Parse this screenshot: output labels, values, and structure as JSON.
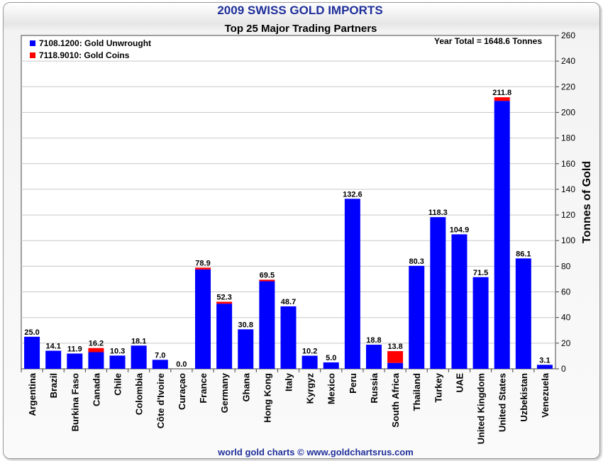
{
  "chart_data": {
    "type": "bar",
    "title": "2009 SWISS GOLD IMPORTS",
    "subtitle": "Top 25 Major Trading Partners",
    "annotation": "Year Total = 1648.6 Tonnes",
    "ylabel": "Tonnes of Gold",
    "xlabel": "",
    "ylim": [
      0,
      260
    ],
    "yticks": [
      0,
      20,
      40,
      60,
      80,
      100,
      120,
      140,
      160,
      180,
      200,
      220,
      240,
      260
    ],
    "y_axis_side": "right",
    "grid": true,
    "stacked": true,
    "legend_position": "top-left",
    "categories": [
      "Argentina",
      "Brazil",
      "Burkina Faso",
      "Canada",
      "Chile",
      "Colombia",
      "Côte d'Ivoire",
      "Curaçao",
      "France",
      "Germany",
      "Ghana",
      "Hong Kong",
      "Italy",
      "Kyrgyz",
      "Mexico",
      "Peru",
      "Russia",
      "South Africa",
      "Thailand",
      "Turkey",
      "UAE",
      "United Kingdom",
      "United States",
      "Uzbekistan",
      "Venezuela"
    ],
    "series": [
      {
        "name": "7108.1200: Gold Unwrought",
        "color": "#0000ff",
        "values": [
          25.0,
          14.1,
          11.9,
          13.0,
          10.3,
          18.1,
          7.0,
          0.0,
          77.5,
          50.8,
          30.8,
          68.3,
          48.7,
          10.2,
          5.0,
          132.6,
          18.8,
          4.6,
          80.3,
          118.3,
          104.9,
          71.5,
          209.0,
          86.1,
          3.1
        ]
      },
      {
        "name": "7118.9010: Gold Coins",
        "color": "#ff0000",
        "values": [
          0,
          0,
          0,
          3.2,
          0,
          0,
          0,
          0,
          1.4,
          1.5,
          0,
          1.2,
          0,
          0,
          0,
          0,
          0,
          9.2,
          0,
          0,
          0,
          0,
          2.8,
          0,
          0
        ]
      }
    ],
    "totals": [
      "25.0",
      "14.1",
      "11.9",
      "16.2",
      "10.3",
      "18.1",
      "7.0",
      "0.0",
      "78.9",
      "52.3",
      "30.8",
      "69.5",
      "48.7",
      "10.2",
      "5.0",
      "132.6",
      "18.8",
      "13.8",
      "80.3",
      "118.3",
      "104.9",
      "71.5",
      "211.8",
      "86.1",
      "3.1"
    ]
  },
  "footer": "world gold charts © www.goldchartsrus.com"
}
